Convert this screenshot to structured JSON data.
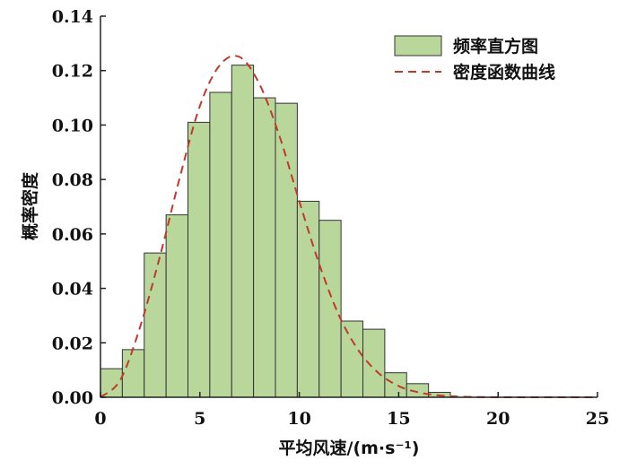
{
  "chart_data": {
    "type": "bar",
    "xlabel": "平均风速/(m·s⁻¹)",
    "ylabel": "概率密度",
    "xlim": [
      0,
      25
    ],
    "ylim": [
      0,
      0.14
    ],
    "xticks": [
      "0",
      "5",
      "10",
      "15",
      "20",
      "25"
    ],
    "yticks": [
      "0.00",
      "0.02",
      "0.04",
      "0.06",
      "0.08",
      "0.10",
      "0.12",
      "0.14"
    ],
    "grid": false,
    "legend_position": "top-right",
    "colors": {
      "bar_fill": "#b9d79b",
      "bar_stroke": "#333333",
      "curve": "#c0392b"
    },
    "series": [
      {
        "name": "频率直方图",
        "type": "histogram",
        "bin_width": 1.1,
        "bin_starts": [
          0,
          1.1,
          2.2,
          3.3,
          4.4,
          5.5,
          6.6,
          7.7,
          8.8,
          9.9,
          11.0,
          12.1,
          13.2,
          14.3,
          15.4,
          16.5
        ],
        "values": [
          0.0105,
          0.0175,
          0.053,
          0.067,
          0.101,
          0.112,
          0.122,
          0.11,
          0.108,
          0.072,
          0.065,
          0.028,
          0.025,
          0.009,
          0.005,
          0.0018
        ]
      },
      {
        "name": "密度函数曲线",
        "type": "line",
        "style": "dashed",
        "x": [
          0,
          1,
          2,
          3,
          4,
          5,
          6,
          7,
          8,
          9,
          10,
          11,
          12,
          13,
          14,
          15,
          16,
          17,
          18,
          19,
          20,
          21,
          22,
          23,
          24,
          25
        ],
        "y": [
          0,
          0.0064,
          0.026,
          0.052,
          0.081,
          0.107,
          0.122,
          0.125,
          0.115,
          0.096,
          0.072,
          0.049,
          0.03,
          0.017,
          0.0088,
          0.0041,
          0.0018,
          0.0007,
          0.00024,
          8e-05,
          2e-05,
          0,
          0,
          0,
          0,
          0
        ]
      }
    ]
  }
}
